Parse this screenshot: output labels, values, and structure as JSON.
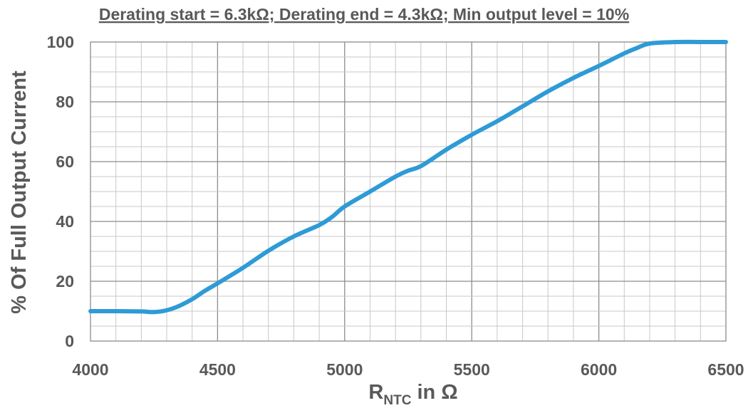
{
  "chart_data": {
    "type": "line",
    "title": "Derating start = 6.3kΩ; Derating end = 4.3kΩ; Min output level = 10%",
    "xlabel_main": "R",
    "xlabel_sub": "NTC",
    "xlabel_suffix": " in Ω",
    "ylabel": "% Of Full Output Current",
    "xlim": [
      4000,
      6500
    ],
    "ylim": [
      0,
      100
    ],
    "x_ticks": [
      4000,
      4500,
      5000,
      5500,
      6000,
      6500
    ],
    "y_ticks": [
      0,
      20,
      40,
      60,
      80,
      100
    ],
    "x_minor_step": 100,
    "y_minor_step": 5,
    "grid": true,
    "legend": "none",
    "series": [
      {
        "color": "#2e9bd6",
        "x": [
          4000,
          4100,
          4200,
          4250,
          4300,
          4350,
          4400,
          4450,
          4500,
          4600,
          4700,
          4800,
          4900,
          4950,
          5000,
          5100,
          5200,
          5250,
          5300,
          5400,
          5500,
          5600,
          5700,
          5800,
          5900,
          6000,
          6100,
          6150,
          6200,
          6300,
          6400,
          6500
        ],
        "y": [
          10,
          10,
          9.9,
          9.7,
          10.3,
          11.8,
          14,
          16.8,
          19.3,
          24.5,
          30.2,
          35,
          38.8,
          41.5,
          45,
          50,
          55,
          57,
          58.5,
          64,
          69,
          73.5,
          78.5,
          83.5,
          88,
          92,
          96.2,
          98,
          99.5,
          100,
          100,
          100
        ]
      }
    ]
  }
}
